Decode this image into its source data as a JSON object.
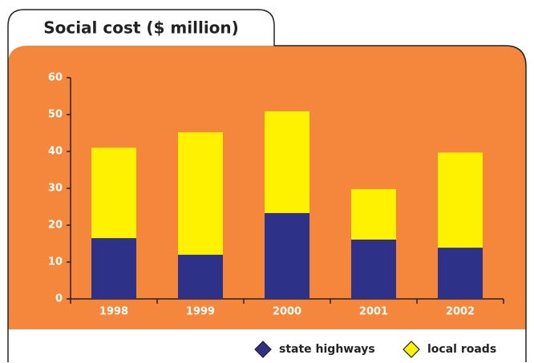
{
  "chart_data": {
    "type": "bar",
    "stacked": true,
    "title": "Social cost ($ million)",
    "categories": [
      "1998",
      "1999",
      "2000",
      "2001",
      "2002"
    ],
    "series": [
      {
        "name": "state highways",
        "color": "#2e3188",
        "values": [
          16.5,
          12,
          23.3,
          16.1,
          13.9
        ]
      },
      {
        "name": "local roads",
        "color": "#fff200",
        "values": [
          24.5,
          33.2,
          27.6,
          13.7,
          25.8
        ]
      }
    ],
    "ylim": [
      0,
      60
    ],
    "yticks": [
      0,
      10,
      20,
      30,
      40,
      50,
      60
    ]
  }
}
